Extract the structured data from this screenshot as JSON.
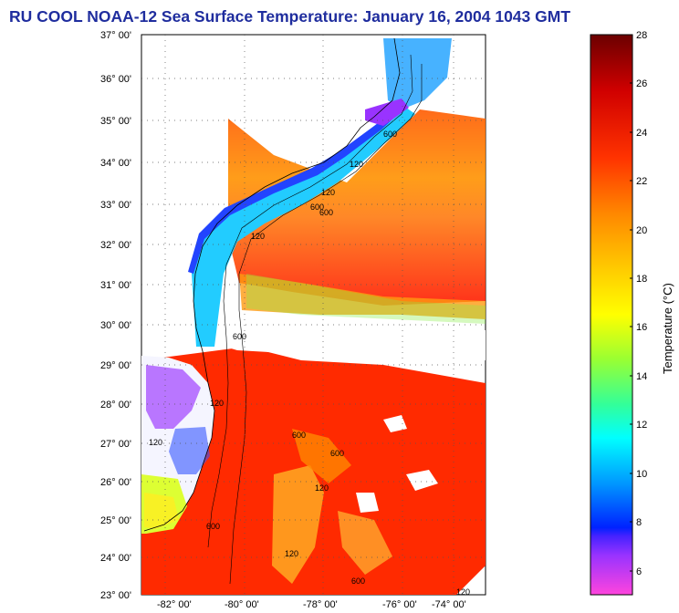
{
  "title": "RU COOL  NOAA-12  Sea Surface Temperature:  January 16, 2004 1043 GMT",
  "map": {
    "lat_labels": [
      "37° 00'",
      "36° 00'",
      "35° 00'",
      "34° 00'",
      "33° 00'",
      "32° 00'",
      "31° 00'",
      "30° 00'",
      "29° 00'",
      "28° 00'",
      "27° 00'",
      "26° 00'",
      "25° 00'",
      "24° 00'",
      "23° 00'"
    ],
    "lon_labels": [
      "-82° 00'",
      "-80° 00'",
      "-78° 00'",
      "-76° 00'",
      "-74° 00'"
    ],
    "contour_labels": [
      "120",
      "600",
      "120",
      "600",
      "120",
      "600",
      "120",
      "600",
      "120",
      "600",
      "120",
      "600",
      "120",
      "600",
      "120",
      "600"
    ]
  },
  "colorbar": {
    "label": "Temperature (°C)",
    "ticks": [
      "28",
      "26",
      "24",
      "22",
      "20",
      "18",
      "16",
      "14",
      "12",
      "10",
      "8",
      "6"
    ],
    "range": [
      5,
      28
    ],
    "colors": {
      "hot": "#7a0000",
      "red": "#ff1a00",
      "orange": "#ff9900",
      "yellow": "#ffff00",
      "green": "#66ff33",
      "cyan": "#00ffff",
      "blue": "#0033ff",
      "purple": "#9933ff",
      "pink": "#ff44dd"
    }
  }
}
